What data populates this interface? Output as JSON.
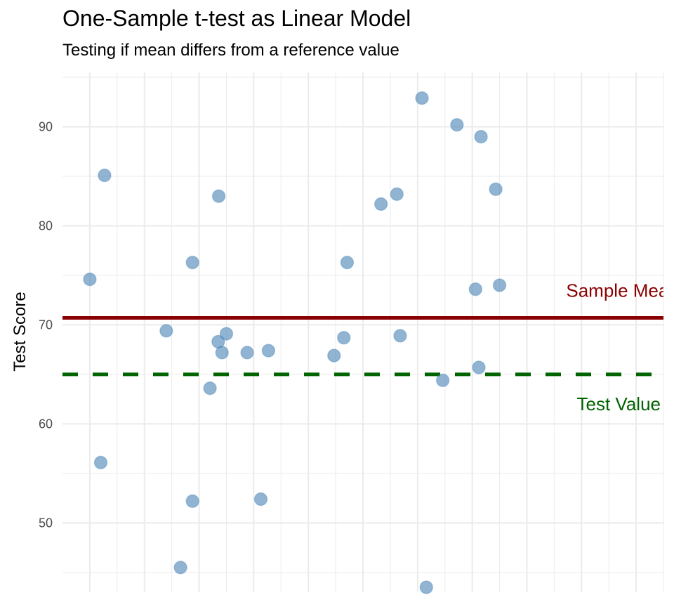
{
  "chart_data": {
    "type": "scatter",
    "title": "One-Sample t-test as Linear Model",
    "subtitle": "Testing if mean differs from a reference value",
    "xlabel": "",
    "ylabel": "Test Score",
    "ylim": [
      43,
      95.5
    ],
    "xlim": [
      0.5,
      11.5
    ],
    "yticks": [
      50,
      60,
      70,
      80,
      90
    ],
    "grid": true,
    "colors": {
      "points": "#4682b4",
      "sample_mean": "#8b0000",
      "test_value": "#006400",
      "grid": "#ebebeb",
      "tick_text": "#4d4d4d"
    },
    "points": [
      {
        "x": 1.0,
        "y": 74.6
      },
      {
        "x": 1.2,
        "y": 56.1
      },
      {
        "x": 1.27,
        "y": 85.1
      },
      {
        "x": 2.4,
        "y": 69.4
      },
      {
        "x": 2.66,
        "y": 45.5
      },
      {
        "x": 2.88,
        "y": 76.3
      },
      {
        "x": 2.88,
        "y": 52.2
      },
      {
        "x": 3.2,
        "y": 63.6
      },
      {
        "x": 3.35,
        "y": 68.3
      },
      {
        "x": 3.36,
        "y": 83.0
      },
      {
        "x": 3.42,
        "y": 67.2
      },
      {
        "x": 3.5,
        "y": 69.1
      },
      {
        "x": 3.88,
        "y": 67.2
      },
      {
        "x": 4.13,
        "y": 52.4
      },
      {
        "x": 4.27,
        "y": 67.4
      },
      {
        "x": 5.47,
        "y": 66.9
      },
      {
        "x": 5.65,
        "y": 68.7
      },
      {
        "x": 5.71,
        "y": 76.3
      },
      {
        "x": 6.33,
        "y": 82.2
      },
      {
        "x": 6.62,
        "y": 83.2
      },
      {
        "x": 6.68,
        "y": 68.9
      },
      {
        "x": 7.08,
        "y": 92.9
      },
      {
        "x": 7.16,
        "y": 43.5
      },
      {
        "x": 7.46,
        "y": 64.4
      },
      {
        "x": 7.72,
        "y": 90.2
      },
      {
        "x": 8.06,
        "y": 73.6
      },
      {
        "x": 8.12,
        "y": 65.7
      },
      {
        "x": 8.16,
        "y": 89.0
      },
      {
        "x": 8.43,
        "y": 83.7
      },
      {
        "x": 8.5,
        "y": 74.0
      }
    ],
    "sample_mean": {
      "value": 70.7,
      "label": "Sample Mear"
    },
    "test_value": {
      "value": 65,
      "label": "Test Value"
    }
  }
}
